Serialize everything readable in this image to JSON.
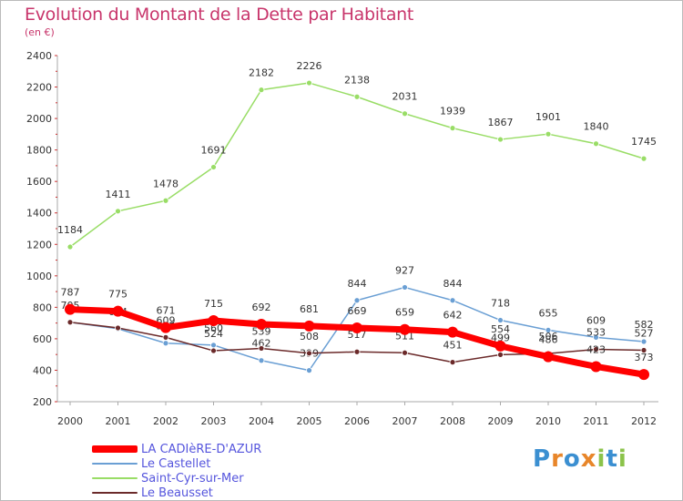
{
  "title": "Evolution du Montant de la Dette par Habitant",
  "unit": "(en €)",
  "logo": "Proxiti",
  "chart_data": {
    "type": "line",
    "x": [
      "2000",
      "2001",
      "2002",
      "2003",
      "2004",
      "2005",
      "2006",
      "2007",
      "2008",
      "2009",
      "2010",
      "2011",
      "2012"
    ],
    "ylim": [
      200,
      2400
    ],
    "yticks": [
      200,
      400,
      600,
      800,
      1000,
      1200,
      1400,
      1600,
      1800,
      2000,
      2200,
      2400
    ],
    "grid": false,
    "legend_position": "bottom-left",
    "series": [
      {
        "name": "LA CADIèRE-D'AZUR",
        "color": "#ff0000",
        "values": [
          787,
          775,
          671,
          715,
          692,
          681,
          669,
          659,
          642,
          554,
          486,
          423,
          373
        ],
        "labels": [
          "787",
          "775",
          "671",
          "715",
          "692",
          "681",
          "669",
          "659",
          "642",
          "554",
          "486",
          "423",
          "373"
        ]
      },
      {
        "name": "Le Castellet",
        "color": "#6a9fd4",
        "values": [
          705,
          664,
          572,
          560,
          462,
          399,
          844,
          927,
          844,
          718,
          655,
          609,
          582
        ],
        "labels": [
          "705",
          "664",
          "572",
          "560",
          "462",
          "399",
          "844",
          "927",
          "844",
          "718",
          "655",
          "609",
          "582"
        ]
      },
      {
        "name": "Saint-Cyr-sur-Mer",
        "color": "#99dd66",
        "values": [
          1184,
          1411,
          1478,
          1691,
          2182,
          2226,
          2138,
          2031,
          1939,
          1867,
          1901,
          1840,
          1745
        ],
        "labels": [
          "1184",
          "1411",
          "1478",
          "1691",
          "2182",
          "2226",
          "2138",
          "2031",
          "1939",
          "1867",
          "1901",
          "1840",
          "1745"
        ]
      },
      {
        "name": "Le Beausset",
        "color": "#6b2a2a",
        "values": [
          705,
          669,
          609,
          524,
          539,
          508,
          517,
          511,
          451,
          499,
          506,
          533,
          527
        ],
        "labels": [
          "",
          "",
          "609",
          "524",
          "539",
          "508",
          "517",
          "511",
          "451",
          "499",
          "506",
          "533",
          "527"
        ]
      }
    ]
  }
}
